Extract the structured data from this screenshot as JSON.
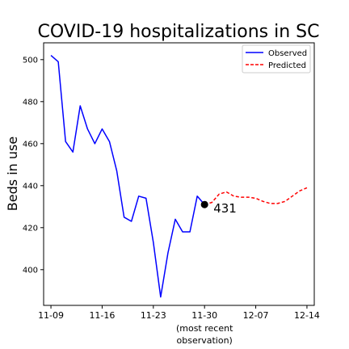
{
  "chart_data": {
    "type": "line",
    "title": "COVID-19 hospitalizations in SC",
    "xlabel": "",
    "ylabel": "Beds in use",
    "xlim": [
      "2020-11-08",
      "2020-12-15"
    ],
    "ylim": [
      383,
      508
    ],
    "x_ticks": [
      "2020-11-09",
      "2020-11-16",
      "2020-11-23",
      "2020-11-30",
      "2020-12-07",
      "2020-12-14"
    ],
    "x_tick_labels": [
      "11-09",
      "11-16",
      "11-23",
      "11-30",
      "12-07",
      "12-14"
    ],
    "x_tick_sublabel": {
      "at": "2020-11-30",
      "lines": [
        "(most recent",
        "observation)"
      ]
    },
    "y_ticks": [
      400,
      420,
      440,
      460,
      480,
      500
    ],
    "grid": false,
    "legend": "top-right",
    "series": [
      {
        "name": "Observed",
        "color": "#0000ff",
        "style": "solid",
        "points": [
          [
            "2020-11-09",
            502
          ],
          [
            "2020-11-10",
            499
          ],
          [
            "2020-11-11",
            461
          ],
          [
            "2020-11-12",
            456
          ],
          [
            "2020-11-13",
            478
          ],
          [
            "2020-11-14",
            467
          ],
          [
            "2020-11-15",
            460
          ],
          [
            "2020-11-16",
            467
          ],
          [
            "2020-11-17",
            461
          ],
          [
            "2020-11-18",
            447
          ],
          [
            "2020-11-19",
            425
          ],
          [
            "2020-11-20",
            423
          ],
          [
            "2020-11-21",
            435
          ],
          [
            "2020-11-22",
            434
          ],
          [
            "2020-11-23",
            413
          ],
          [
            "2020-11-24",
            387
          ],
          [
            "2020-11-25",
            408
          ],
          [
            "2020-11-26",
            424
          ],
          [
            "2020-11-27",
            418
          ],
          [
            "2020-11-28",
            418
          ],
          [
            "2020-11-29",
            435
          ],
          [
            "2020-11-30",
            431
          ]
        ]
      },
      {
        "name": "Predicted",
        "color": "#ff0000",
        "style": "dashed",
        "points": [
          [
            "2020-11-30",
            431
          ],
          [
            "2020-12-01",
            432
          ],
          [
            "2020-12-02",
            436
          ],
          [
            "2020-12-03",
            437
          ],
          [
            "2020-12-04",
            435
          ],
          [
            "2020-12-05",
            434.5
          ],
          [
            "2020-12-06",
            434.5
          ],
          [
            "2020-12-07",
            434
          ],
          [
            "2020-12-08",
            432.5
          ],
          [
            "2020-12-09",
            431.5
          ],
          [
            "2020-12-10",
            431.5
          ],
          [
            "2020-12-11",
            432.5
          ],
          [
            "2020-12-12",
            435
          ],
          [
            "2020-12-13",
            437.5
          ],
          [
            "2020-12-14",
            439
          ]
        ]
      }
    ],
    "annotations": [
      {
        "x": "2020-11-30",
        "y": 431,
        "text": "431",
        "marker": "dot"
      }
    ]
  }
}
